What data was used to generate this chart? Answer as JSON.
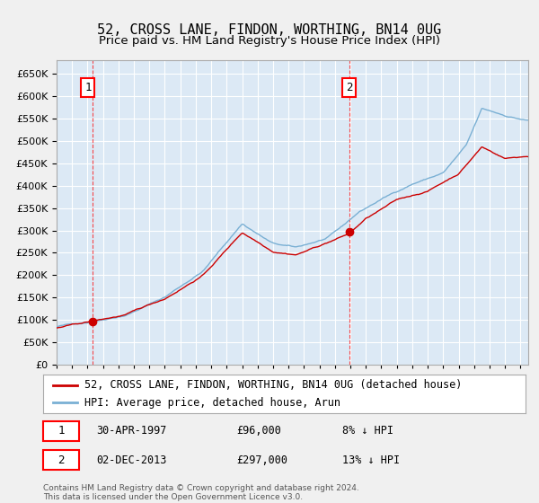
{
  "title": "52, CROSS LANE, FINDON, WORTHING, BN14 0UG",
  "subtitle": "Price paid vs. HM Land Registry's House Price Index (HPI)",
  "background_color": "#f0f0f0",
  "plot_bg_color": "#dce9f5",
  "hpi_color": "#7ab0d4",
  "price_color": "#cc0000",
  "grid_color": "#ffffff",
  "ylim": [
    0,
    680000
  ],
  "yticks": [
    0,
    50000,
    100000,
    150000,
    200000,
    250000,
    300000,
    350000,
    400000,
    450000,
    500000,
    550000,
    600000,
    650000
  ],
  "sale1_date": 1997.33,
  "sale1_price": 96000,
  "sale2_date": 2013.92,
  "sale2_price": 297000,
  "vline1_x": 1997.33,
  "vline2_x": 2013.92,
  "xmin": 1995.0,
  "xmax": 2025.5,
  "legend_label_red": "52, CROSS LANE, FINDON, WORTHING, BN14 0UG (detached house)",
  "legend_label_blue": "HPI: Average price, detached house, Arun",
  "footer": "Contains HM Land Registry data © Crown copyright and database right 2024.\nThis data is licensed under the Open Government Licence v3.0.",
  "title_fontsize": 11,
  "subtitle_fontsize": 9.5,
  "tick_fontsize": 8,
  "legend_fontsize": 8.5,
  "hpi_waypoints_t": [
    1995.0,
    1997.0,
    1999.5,
    2002.0,
    2004.5,
    2007.0,
    2009.0,
    2010.5,
    2012.5,
    2013.5,
    2014.5,
    2016.0,
    2018.0,
    2020.0,
    2021.5,
    2022.5,
    2024.0,
    2025.4
  ],
  "hpi_waypoints_v": [
    85000,
    95000,
    115000,
    155000,
    215000,
    320000,
    275000,
    265000,
    285000,
    310000,
    340000,
    370000,
    405000,
    430000,
    490000,
    570000,
    555000,
    545000
  ],
  "price_waypoints_t": [
    1995.0,
    1997.33,
    1999.5,
    2002.0,
    2004.5,
    2007.0,
    2009.0,
    2010.5,
    2012.0,
    2013.92,
    2015.0,
    2017.0,
    2019.0,
    2021.0,
    2022.5,
    2024.0,
    2025.4
  ],
  "price_waypoints_v": [
    82000,
    96000,
    110000,
    145000,
    200000,
    295000,
    255000,
    250000,
    270000,
    297000,
    330000,
    370000,
    390000,
    430000,
    490000,
    465000,
    470000
  ]
}
